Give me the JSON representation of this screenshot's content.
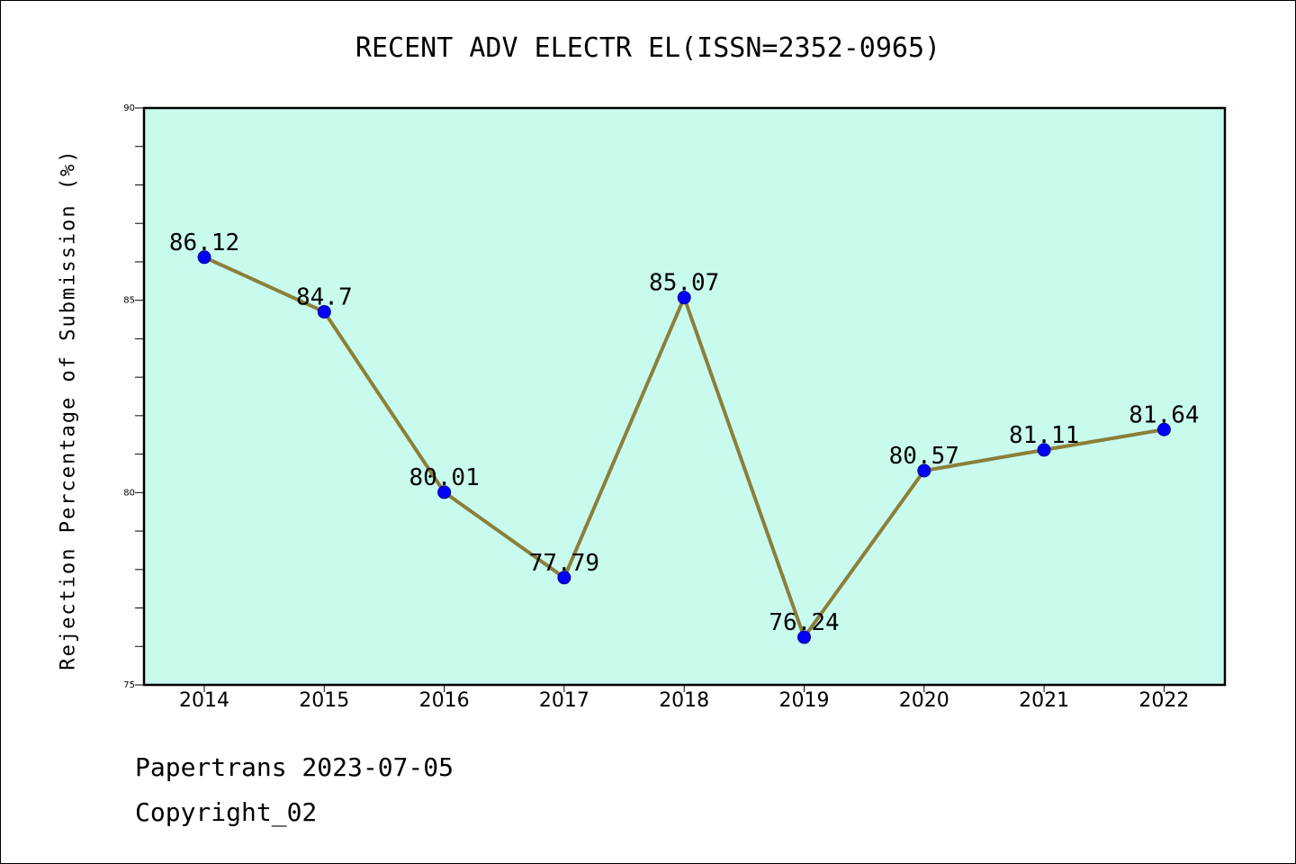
{
  "chart_data": {
    "type": "line",
    "title": "RECENT ADV ELECTR EL(ISSN=2352-0965)",
    "xlabel": "",
    "ylabel": "Rejection Percentage of Submission (%)",
    "categories": [
      "2014",
      "2015",
      "2016",
      "2017",
      "2018",
      "2019",
      "2020",
      "2021",
      "2022"
    ],
    "series": [
      {
        "values": [
          86.12,
          84.7,
          80.01,
          77.79,
          85.07,
          76.24,
          80.57,
          81.11,
          81.64
        ]
      }
    ],
    "data_labels": [
      "86.12",
      "84.7",
      "80.01",
      "77.79",
      "85.07",
      "76.24",
      "80.57",
      "81.11",
      "81.64"
    ],
    "ylim": [
      75,
      90
    ],
    "yticks": [
      "75",
      "80",
      "85",
      "90"
    ],
    "grid": false,
    "colors": {
      "plot_background": "#c8fbee",
      "line": "#8b7f3a",
      "marker": "#0000ff"
    }
  },
  "footer": {
    "line1": "Papertrans 2023-07-05",
    "line2": "Copyright_02"
  }
}
